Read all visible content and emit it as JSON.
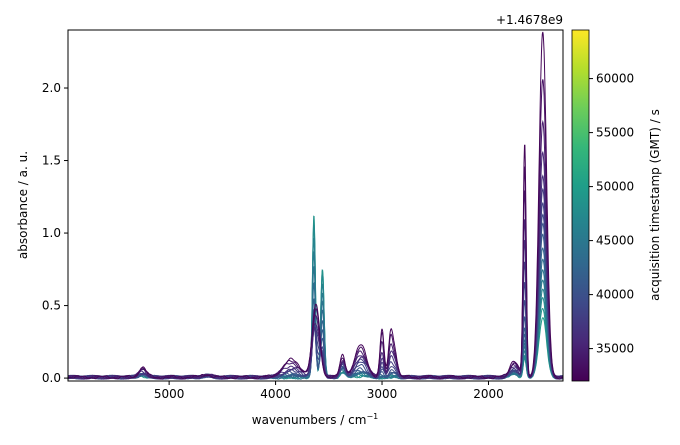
{
  "chart_data": {
    "type": "line",
    "xlabel": "wavenumbers / cm",
    "xlabel_sup": "−1",
    "ylabel": "absorbance / a. u.",
    "x_inverted": true,
    "xlim": [
      5950,
      1300
    ],
    "ylim": [
      -0.02,
      2.4
    ],
    "xticks": [
      5000,
      4000,
      3000,
      2000
    ],
    "yticks": [
      0.0,
      0.5,
      1.0,
      1.5,
      2.0
    ],
    "xtick_labels": [
      "5000",
      "4000",
      "3000",
      "2000"
    ],
    "ytick_labels": [
      "0.0",
      "0.5",
      "1.0",
      "1.5",
      "2.0"
    ],
    "colorbar": {
      "label": "acquisition timestamp (GMT) / s",
      "offset_label": "+1.4678e9",
      "range": [
        32000,
        64500
      ],
      "ticks": [
        35000,
        40000,
        45000,
        50000,
        55000,
        60000
      ],
      "tick_labels": [
        "35000",
        "40000",
        "45000",
        "50000",
        "55000",
        "60000"
      ],
      "colormap": "viridis"
    },
    "peaks": [
      {
        "center": 1490,
        "width": 35
      },
      {
        "center": 1660,
        "width": 14
      },
      {
        "center": 1760,
        "width": 40
      },
      {
        "center": 3640,
        "width": 14
      },
      {
        "center": 3560,
        "width": 16
      },
      {
        "center": 3620,
        "width": 35
      },
      {
        "center": 3850,
        "width": 80
      },
      {
        "center": 3370,
        "width": 25
      },
      {
        "center": 3200,
        "width": 55
      },
      {
        "center": 3000,
        "width": 18
      },
      {
        "center": 2920,
        "width": 20
      },
      {
        "center": 2880,
        "width": 25
      },
      {
        "center": 5250,
        "width": 35
      },
      {
        "center": 4650,
        "width": 40
      }
    ],
    "series": [
      {
        "t": 32500,
        "amps": [
          2.38,
          1.6,
          0.12,
          0.0,
          0.0,
          0.5,
          0.12,
          0.15,
          0.22,
          0.33,
          0.28,
          0.18,
          0.07,
          0.02
        ]
      },
      {
        "t": 33500,
        "amps": [
          2.05,
          1.45,
          0.1,
          0.0,
          0.0,
          0.47,
          0.11,
          0.14,
          0.2,
          0.3,
          0.25,
          0.15,
          0.06,
          0.02
        ]
      },
      {
        "t": 34500,
        "amps": [
          1.75,
          1.3,
          0.09,
          0.02,
          0.02,
          0.42,
          0.1,
          0.12,
          0.18,
          0.24,
          0.2,
          0.12,
          0.05,
          0.02
        ]
      },
      {
        "t": 35500,
        "amps": [
          1.55,
          1.1,
          0.08,
          0.04,
          0.04,
          0.36,
          0.08,
          0.11,
          0.16,
          0.18,
          0.15,
          0.1,
          0.05,
          0.01
        ]
      },
      {
        "t": 36500,
        "amps": [
          1.4,
          0.95,
          0.07,
          0.08,
          0.07,
          0.3,
          0.06,
          0.1,
          0.14,
          0.14,
          0.11,
          0.08,
          0.04,
          0.01
        ]
      },
      {
        "t": 37500,
        "amps": [
          1.3,
          0.8,
          0.06,
          0.12,
          0.1,
          0.24,
          0.05,
          0.09,
          0.12,
          0.1,
          0.08,
          0.06,
          0.03,
          0.01
        ]
      },
      {
        "t": 38500,
        "amps": [
          1.2,
          0.65,
          0.05,
          0.18,
          0.14,
          0.18,
          0.04,
          0.08,
          0.1,
          0.07,
          0.06,
          0.05,
          0.03,
          0.01
        ]
      },
      {
        "t": 39500,
        "amps": [
          1.12,
          0.52,
          0.05,
          0.25,
          0.19,
          0.13,
          0.03,
          0.08,
          0.08,
          0.05,
          0.04,
          0.04,
          0.02,
          0.01
        ]
      },
      {
        "t": 40500,
        "amps": [
          1.05,
          0.42,
          0.04,
          0.33,
          0.25,
          0.09,
          0.02,
          0.07,
          0.06,
          0.03,
          0.03,
          0.03,
          0.02,
          0.01
        ]
      },
      {
        "t": 41500,
        "amps": [
          0.98,
          0.35,
          0.04,
          0.42,
          0.31,
          0.06,
          0.02,
          0.07,
          0.05,
          0.02,
          0.02,
          0.02,
          0.02,
          0.01
        ]
      },
      {
        "t": 42500,
        "amps": [
          0.9,
          0.3,
          0.04,
          0.52,
          0.38,
          0.04,
          0.01,
          0.06,
          0.04,
          0.01,
          0.01,
          0.02,
          0.02,
          0.01
        ]
      },
      {
        "t": 43500,
        "amps": [
          0.82,
          0.26,
          0.03,
          0.63,
          0.45,
          0.03,
          0.01,
          0.06,
          0.03,
          0.01,
          0.01,
          0.01,
          0.02,
          0.01
        ]
      },
      {
        "t": 44500,
        "amps": [
          0.74,
          0.23,
          0.03,
          0.74,
          0.52,
          0.02,
          0.01,
          0.05,
          0.03,
          0.0,
          0.0,
          0.01,
          0.02,
          0.01
        ]
      },
      {
        "t": 45500,
        "amps": [
          0.67,
          0.2,
          0.03,
          0.85,
          0.59,
          0.02,
          0.0,
          0.05,
          0.02,
          0.0,
          0.0,
          0.01,
          0.02,
          0.01
        ]
      },
      {
        "t": 46500,
        "amps": [
          0.6,
          0.18,
          0.03,
          0.96,
          0.65,
          0.01,
          0.0,
          0.04,
          0.02,
          0.0,
          0.0,
          0.01,
          0.02,
          0.01
        ]
      },
      {
        "t": 47500,
        "amps": [
          0.54,
          0.16,
          0.02,
          1.05,
          0.7,
          0.01,
          0.0,
          0.04,
          0.02,
          0.0,
          0.0,
          0.0,
          0.02,
          0.01
        ]
      },
      {
        "t": 48500,
        "amps": [
          0.48,
          0.14,
          0.02,
          1.12,
          0.74,
          0.01,
          0.0,
          0.03,
          0.01,
          0.0,
          0.0,
          0.0,
          0.01,
          0.01
        ]
      },
      {
        "t": 49500,
        "amps": [
          0.42,
          0.13,
          0.02,
          1.1,
          0.73,
          0.0,
          0.0,
          0.03,
          0.01,
          0.0,
          0.0,
          0.0,
          0.01,
          0.01
        ]
      }
    ]
  }
}
